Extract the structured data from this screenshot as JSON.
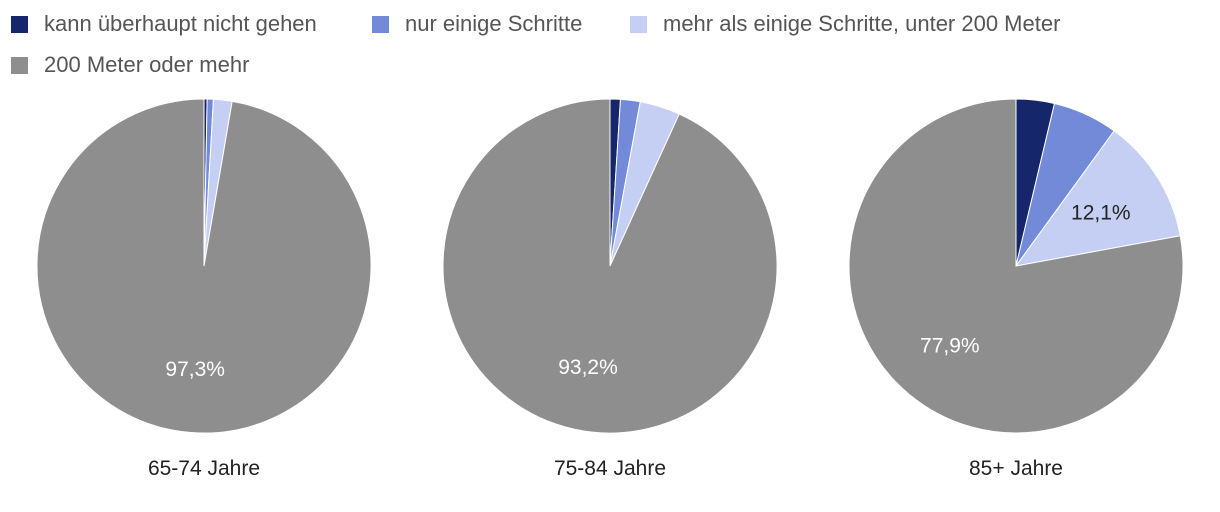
{
  "chart_data": {
    "type": "pie",
    "legend": [
      {
        "label": "kann überhaupt nicht gehen",
        "color": "#16266a"
      },
      {
        "label": "nur einige Schritte",
        "color": "#728ad8"
      },
      {
        "label": "mehr als einige Schritte, unter 200 Meter",
        "color": "#c5cff4"
      },
      {
        "label": "200 Meter oder mehr",
        "color": "#8e8e8e"
      }
    ],
    "legend_position": "top",
    "pies": [
      {
        "category": "65-74 Jahre",
        "values": [
          0.3,
          0.6,
          1.8,
          97.3
        ],
        "labels": [
          "",
          "",
          "",
          "97,3%"
        ]
      },
      {
        "category": "75-84 Jahre",
        "values": [
          1.0,
          1.9,
          3.9,
          93.2
        ],
        "labels": [
          "",
          "",
          "",
          "93,2%"
        ]
      },
      {
        "category": "85+ Jahre",
        "values": [
          3.7,
          6.3,
          12.1,
          77.9
        ],
        "labels": [
          "",
          "",
          "12,1%",
          "77,9%"
        ]
      }
    ]
  }
}
